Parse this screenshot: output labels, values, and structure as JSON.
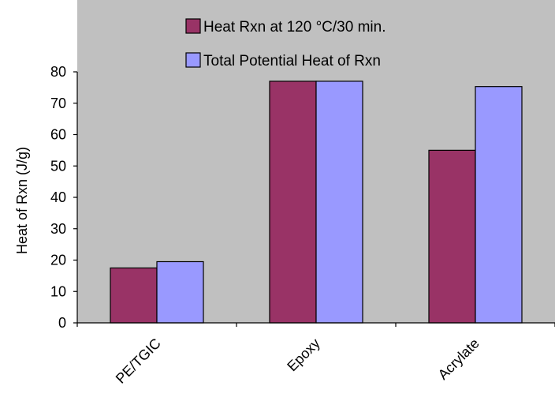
{
  "chart_data": {
    "type": "bar",
    "title": "",
    "xlabel": "",
    "ylabel": "Heat of Rxn (J/g)",
    "categories": [
      "PE/TGIC",
      "Epoxy",
      "Acrylate"
    ],
    "series": [
      {
        "name": "Heat Rxn at 120 °C/30 min.",
        "values": [
          17.5,
          77,
          55
        ],
        "color": "#993366"
      },
      {
        "name": "Total Potential Heat of Rxn",
        "values": [
          19.5,
          77,
          75.3
        ],
        "color": "#9999ff"
      }
    ],
    "ylim": [
      0,
      80
    ],
    "yticks": [
      0,
      10,
      20,
      30,
      40,
      50,
      60,
      70,
      80
    ],
    "grid": false,
    "legend_position": "top-right",
    "plot_background": "#c0c0c0"
  }
}
